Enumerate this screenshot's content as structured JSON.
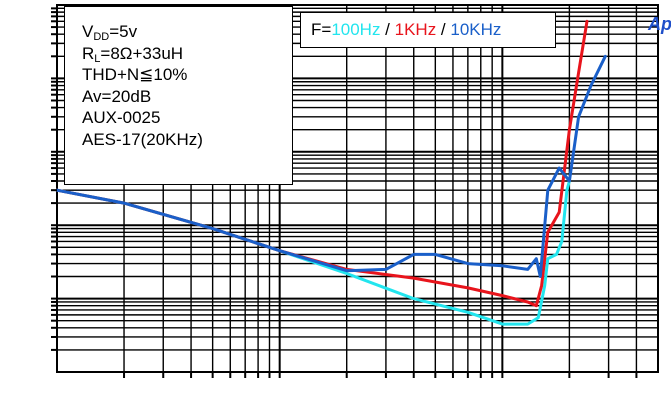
{
  "chart_data": {
    "type": "line",
    "title": "",
    "xlabel": "",
    "ylabel": "",
    "grid": true,
    "x_scale": "log",
    "y_scale": "log",
    "xlim": [
      0.01,
      5
    ],
    "ylim": [
      0.001,
      100
    ],
    "legend_placement": "top-left",
    "conditions": {
      "vdd": {
        "main": "V",
        "sub": "DD",
        "rest": "=5v"
      },
      "rl": {
        "main": "R",
        "sub": "L",
        "rest": "=8Ω+33uH"
      },
      "lines": [
        "THD+N≦10%",
        "Av=20dB",
        "AUX-0025",
        "AES-17(20KHz)"
      ]
    },
    "freq_legend": {
      "prefix": "F=",
      "sep1": " / ",
      "sep2": " / ",
      "entries": [
        {
          "label": "100Hz",
          "color": "#22e5ee"
        },
        {
          "label": "1KHz",
          "color": "#e8141c"
        },
        {
          "label": "10KHz",
          "color": "#1a5fc9"
        }
      ]
    },
    "series": [
      {
        "name": "100Hz",
        "color": "#22e5ee",
        "x": [
          0.01,
          0.02,
          0.05,
          0.1,
          0.2,
          0.4,
          0.7,
          1.0,
          1.3,
          1.45,
          1.55,
          1.6,
          1.75,
          1.85,
          1.95,
          2.0
        ],
        "y": [
          0.3,
          0.2,
          0.09,
          0.045,
          0.022,
          0.01,
          0.0065,
          0.0045,
          0.0045,
          0.0055,
          0.015,
          0.035,
          0.04,
          0.06,
          0.3,
          0.4
        ]
      },
      {
        "name": "1KHz",
        "color": "#e8141c",
        "x": [
          0.01,
          0.02,
          0.05,
          0.1,
          0.2,
          0.4,
          0.7,
          1.0,
          1.3,
          1.42,
          1.5,
          1.6,
          1.8,
          2.0,
          2.2,
          2.4
        ],
        "y": [
          0.3,
          0.2,
          0.09,
          0.045,
          0.025,
          0.019,
          0.014,
          0.011,
          0.009,
          0.008,
          0.015,
          0.08,
          0.15,
          2.0,
          12,
          60
        ]
      },
      {
        "name": "10KHz",
        "color": "#1a5fc9",
        "x": [
          0.01,
          0.02,
          0.05,
          0.1,
          0.2,
          0.3,
          0.4,
          0.5,
          0.7,
          1.0,
          1.3,
          1.42,
          1.48,
          1.6,
          1.8,
          2.0,
          2.2,
          2.5,
          2.9
        ],
        "y": [
          0.3,
          0.2,
          0.09,
          0.045,
          0.024,
          0.025,
          0.04,
          0.04,
          0.03,
          0.028,
          0.025,
          0.035,
          0.02,
          0.3,
          0.6,
          0.4,
          3.0,
          8.0,
          20
        ]
      }
    ]
  }
}
